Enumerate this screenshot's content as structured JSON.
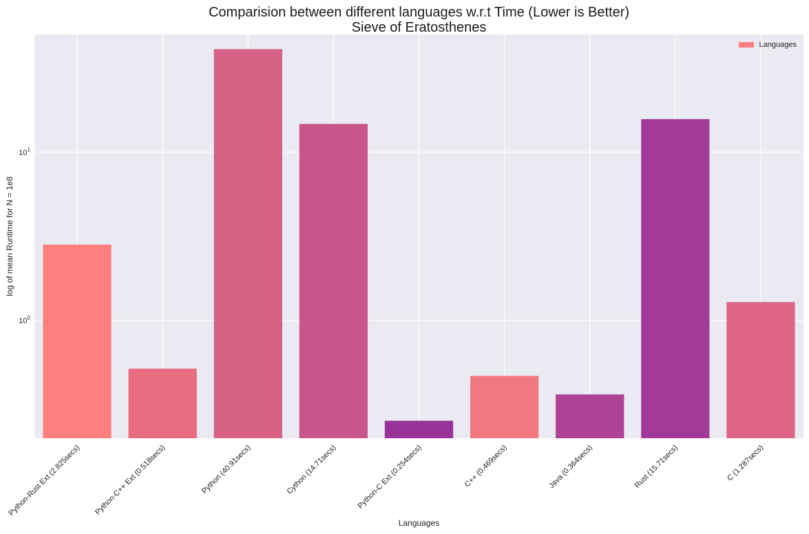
{
  "chart_data": {
    "type": "bar",
    "title": "Comparision between different languages w.r.t Time (Lower is Better)",
    "subtitle": "Sieve of Eratosthenes",
    "xlabel": "Languages",
    "ylabel": "log of mean Runtime for N = 1e8",
    "yscale": "log",
    "ylim": [
      0.2,
      50
    ],
    "yticks": [
      {
        "value": 1,
        "base": "10",
        "exp": "0"
      },
      {
        "value": 10,
        "base": "10",
        "exp": "1"
      }
    ],
    "grid": true,
    "legend": {
      "position": "top-right",
      "entries": [
        "Languages"
      ]
    },
    "categories": [
      "Python-Rust Ext (2.825secs)",
      "Python-C++ Ext (0.518secs)",
      "Python (40.91secs)",
      "Cython (14.71secs)",
      "Python-C Ext (0.254secs)",
      "C++ (0.469secs)",
      "Java (0.364secs)",
      "Rust (15.71secs)",
      "C (1.287secs)"
    ],
    "series": [
      {
        "name": "Languages",
        "values": [
          2.825,
          0.518,
          40.91,
          14.71,
          0.254,
          0.469,
          0.364,
          15.71,
          1.287
        ],
        "colors": [
          "#FF7F7F",
          "#E86D80",
          "#D76185",
          "#C8568A",
          "#993399",
          "#F17780",
          "#AE4295",
          "#A13A98",
          "#DD6586"
        ]
      }
    ],
    "colors": {
      "background": "#EAEAF2",
      "grid": "#FFFFFF"
    }
  }
}
